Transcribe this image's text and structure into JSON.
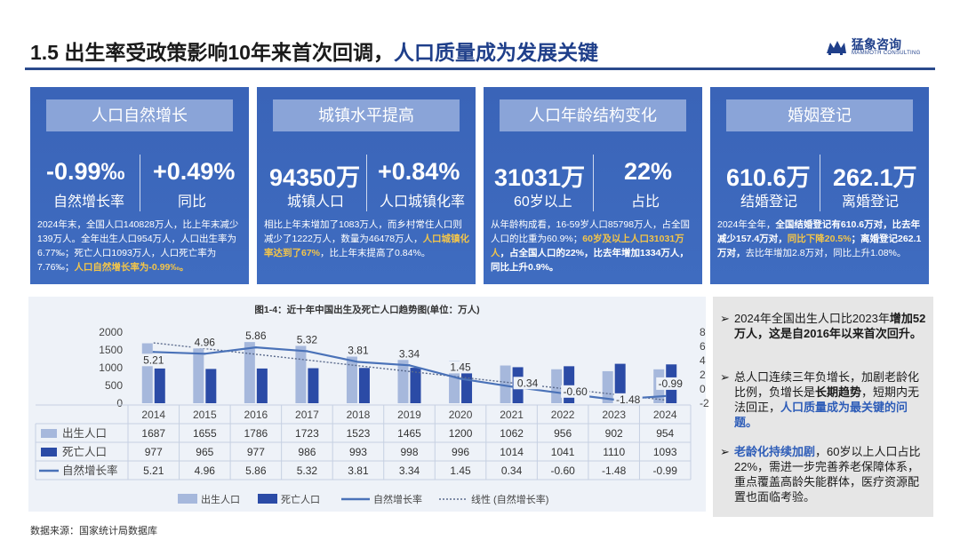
{
  "title_main": "1.5 出生率受政策影响10年来首次回调，",
  "title_highlight": "人口质量成为发展关键",
  "logo": {
    "cn": "猛象咨询",
    "en": "MAMMOTH CONSULTING"
  },
  "cards": [
    {
      "header": "人口自然增长",
      "v1": "-0.99‰",
      "l1": "自然增长率",
      "v2": "+0.49%",
      "l2": "同比",
      "desc": [
        {
          "t": "2024年末，全国人口140828万人，比上年末减少139万人。全年出生人口954万人，人口出生率为6.77‰；死亡人口1093万人，人口死亡率为7.76‰；"
        },
        {
          "t": "人口自然增长率为-0.99‰。",
          "s": "y"
        }
      ]
    },
    {
      "header": "城镇水平提高",
      "v1": "94350万",
      "l1": "城镇人口",
      "v2": "+0.84%",
      "l2": "人口城镇化率",
      "desc": [
        {
          "t": "相比上年末增加了1083万人，而乡村常住人口则减少了1222万人，数量为46478万人，"
        },
        {
          "t": "人口城镇化率达到了67%",
          "s": "y"
        },
        {
          "t": "，比上年末提高了0.84%。"
        }
      ]
    },
    {
      "header": "人口年龄结构变化",
      "v1": "31031万",
      "l1": "60岁以上",
      "v2": "22%",
      "l2": "占比",
      "desc": [
        {
          "t": "从年龄构成看，16-59岁人口85798万人，占全国人口的比重为60.9%；"
        },
        {
          "t": "60岁及以上人口31031万人",
          "s": "y"
        },
        {
          "t": "，占全国人口的22%，比去年增加1334万人，同比上升0.9%。",
          "s": "b"
        }
      ]
    },
    {
      "header": "婚姻登记",
      "v1": "610.6万",
      "l1": "结婚登记",
      "v2": "262.1万",
      "l2": "离婚登记",
      "desc": [
        {
          "t": "2024年全年，"
        },
        {
          "t": "全国结婚登记有610.6万对，比去年减少157.4万对，",
          "s": "b"
        },
        {
          "t": "同比下降20.5%",
          "s": "y"
        },
        {
          "t": "；离婚登记262.1万对，",
          "s": "b"
        },
        {
          "t": "去比年增加2.8万对，同比上升1.08%。"
        }
      ]
    }
  ],
  "chart_data": {
    "type": "bar",
    "title": "图1-4：近十年中国出生及死亡人口趋势图(单位：万人)",
    "categories": [
      "2014",
      "2015",
      "2016",
      "2017",
      "2018",
      "2019",
      "2020",
      "2021",
      "2022",
      "2023",
      "2024"
    ],
    "series": [
      {
        "name": "出生人口",
        "type": "bar",
        "axis": "left",
        "values": [
          1687,
          1655,
          1786,
          1723,
          1523,
          1465,
          1200,
          1062,
          956,
          902,
          954
        ]
      },
      {
        "name": "死亡人口",
        "type": "bar",
        "axis": "left",
        "values": [
          977,
          965,
          977,
          986,
          993,
          998,
          996,
          1014,
          1041,
          1110,
          1093
        ]
      },
      {
        "name": "自然增长率",
        "type": "line",
        "axis": "right",
        "values": [
          5.21,
          4.96,
          5.86,
          5.32,
          3.81,
          3.34,
          1.45,
          0.34,
          -0.6,
          -1.48,
          -0.99
        ]
      },
      {
        "name": "线性 (自然增长率)",
        "type": "trendline",
        "axis": "right"
      }
    ],
    "left_axis": {
      "range": [
        0,
        2000
      ],
      "ticks": [
        "0",
        "500",
        "1000",
        "1500",
        "2000"
      ]
    },
    "right_axis": {
      "range": [
        -2,
        8
      ],
      "ticks": [
        "-2",
        "0",
        "2",
        "4",
        "6",
        "8"
      ]
    },
    "table_rows": [
      {
        "label": "出生人口",
        "values": [
          "1687",
          "1655",
          "1786",
          "1723",
          "1523",
          "1465",
          "1200",
          "1062",
          "956",
          "902",
          "954"
        ]
      },
      {
        "label": "死亡人口",
        "values": [
          "977",
          "965",
          "977",
          "986",
          "993",
          "998",
          "996",
          "1014",
          "1041",
          "1110",
          "1093"
        ]
      },
      {
        "label": "自然增长率",
        "values": [
          "5.21",
          "4.96",
          "5.86",
          "5.32",
          "3.81",
          "3.34",
          "1.45",
          "0.34",
          "-0.60",
          "-1.48",
          "-0.99"
        ]
      }
    ],
    "point_labels": [
      "5.21",
      "4.96",
      "5.86",
      "5.32",
      "3.81",
      "3.34",
      "1.45",
      "0.34",
      "-0.60",
      "-1.48",
      "-0.99"
    ],
    "legend": [
      "出生人口",
      "死亡人口",
      "自然增长率",
      "线性 (自然增长率)"
    ],
    "legend_position": "bottom",
    "colors": {
      "birth": "#a6b8dc",
      "death": "#2b4ba6",
      "rate": "#4a72b8",
      "trend": "#5a6a8c"
    }
  },
  "bullets": [
    [
      {
        "t": "2024年全国出生人口比2023年"
      },
      {
        "t": "增加52万人，这是自2016年以来首次回升。",
        "s": "bb"
      }
    ],
    [
      {
        "t": "总人口连续三年负增长，加剧老龄化比例，负增长是"
      },
      {
        "t": "长期趋势",
        "s": "bb"
      },
      {
        "t": "，短期内无法回正，"
      },
      {
        "t": "人口质量成为最关键的问题。",
        "s": "bl"
      }
    ],
    [
      {
        "t": "老龄化持续加剧",
        "s": "bl"
      },
      {
        "t": "，60岁以上人口占比22%，需进一步完善养老保障体系，重点覆盖高龄失能群体，医疗资源配置也面临考验。"
      }
    ]
  ],
  "bullet_marker": "➢",
  "source": "数据来源：国家统计局数据库"
}
